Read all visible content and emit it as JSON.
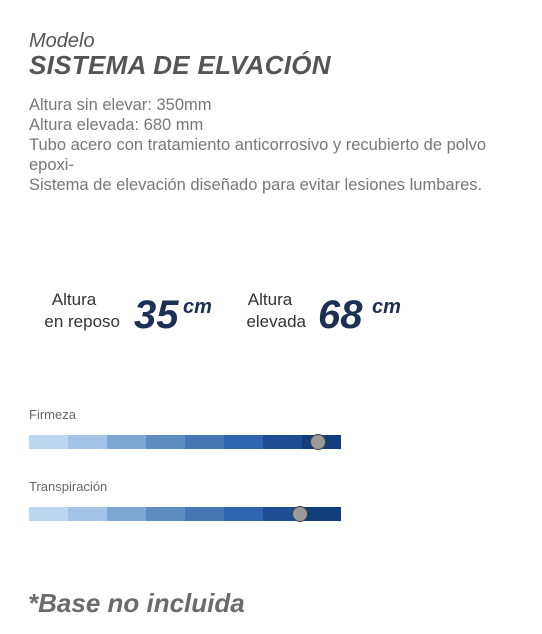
{
  "header": {
    "model_label": "Modelo",
    "model_name": "SISTEMA DE ELVACIÓN"
  },
  "description": [
    "Altura sin elevar: 350mm",
    "Altura elevada: 680 mm",
    "Tubo acero con tratamiento anticorrosivo y recubierto de polvo epoxi-",
    "Sistema de elevación diseñado para evitar lesiones lumbares."
  ],
  "heights": {
    "rest": {
      "label_line1": "Altura",
      "label_line2": "en reposo",
      "value": "35",
      "unit": "cm"
    },
    "raised": {
      "label_line1": "Altura",
      "label_line2": "elevada",
      "value": "68",
      "unit": "cm"
    }
  },
  "ratings": [
    {
      "label": "Firmeza",
      "level": 0.925
    },
    {
      "label": "Transpiración",
      "level": 0.87
    }
  ],
  "bar_colors": [
    "#bcd6f0",
    "#a2c3e6",
    "#7ca6d4",
    "#5c8cc0",
    "#4577b5",
    "#2f64b0",
    "#1d4e95",
    "#123f7c"
  ],
  "footer": {
    "note": "*Base no incluida"
  }
}
